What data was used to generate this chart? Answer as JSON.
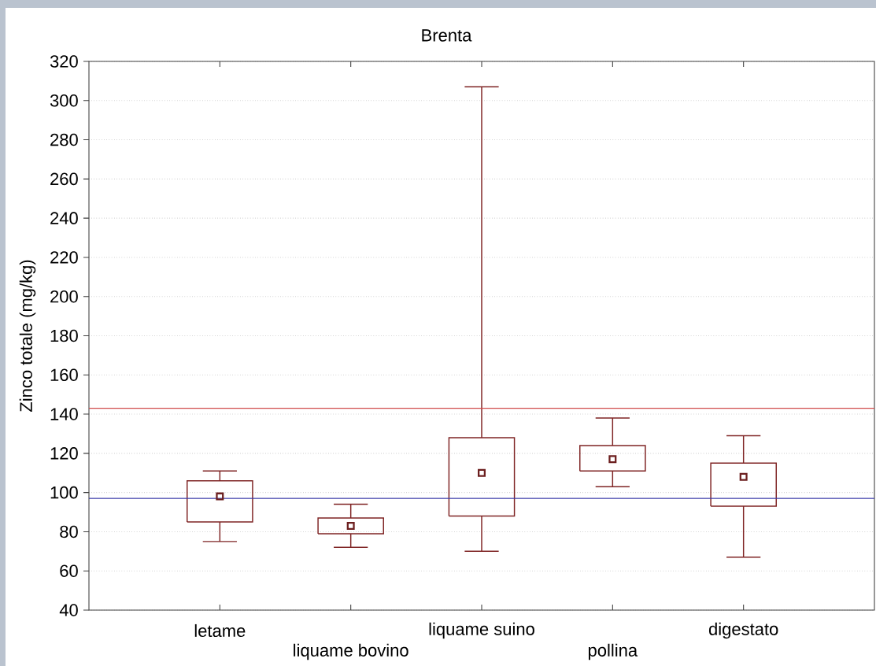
{
  "chart_data": {
    "type": "box",
    "title": "Brenta",
    "ylabel": "Zinco totale (mg/kg)",
    "categories": [
      "letame",
      "liquame bovino",
      "liquame suino",
      "pollina",
      "digestato"
    ],
    "color": "#7f2424",
    "boxes": [
      {
        "low": 75,
        "q1": 85,
        "median": 98,
        "q3": 106,
        "high": 111
      },
      {
        "low": 72,
        "q1": 79,
        "median": 83,
        "q3": 87,
        "high": 94
      },
      {
        "low": 70,
        "q1": 88,
        "median": 110,
        "q3": 128,
        "high": 307
      },
      {
        "low": 103,
        "q1": 111,
        "median": 117,
        "q3": 124,
        "high": 138
      },
      {
        "low": 67,
        "q1": 93,
        "median": 108,
        "q3": 115,
        "high": 129
      }
    ],
    "ylim": [
      40,
      320
    ],
    "yticks": [
      40,
      60,
      80,
      100,
      120,
      140,
      160,
      180,
      200,
      220,
      240,
      260,
      280,
      300,
      320
    ],
    "grid": "y",
    "marker": "square",
    "ref_lines": [
      {
        "axis": "y",
        "value": 143,
        "color": "#d04a4a"
      },
      {
        "axis": "y",
        "value": 97,
        "color": "#3a3aa8"
      }
    ]
  }
}
